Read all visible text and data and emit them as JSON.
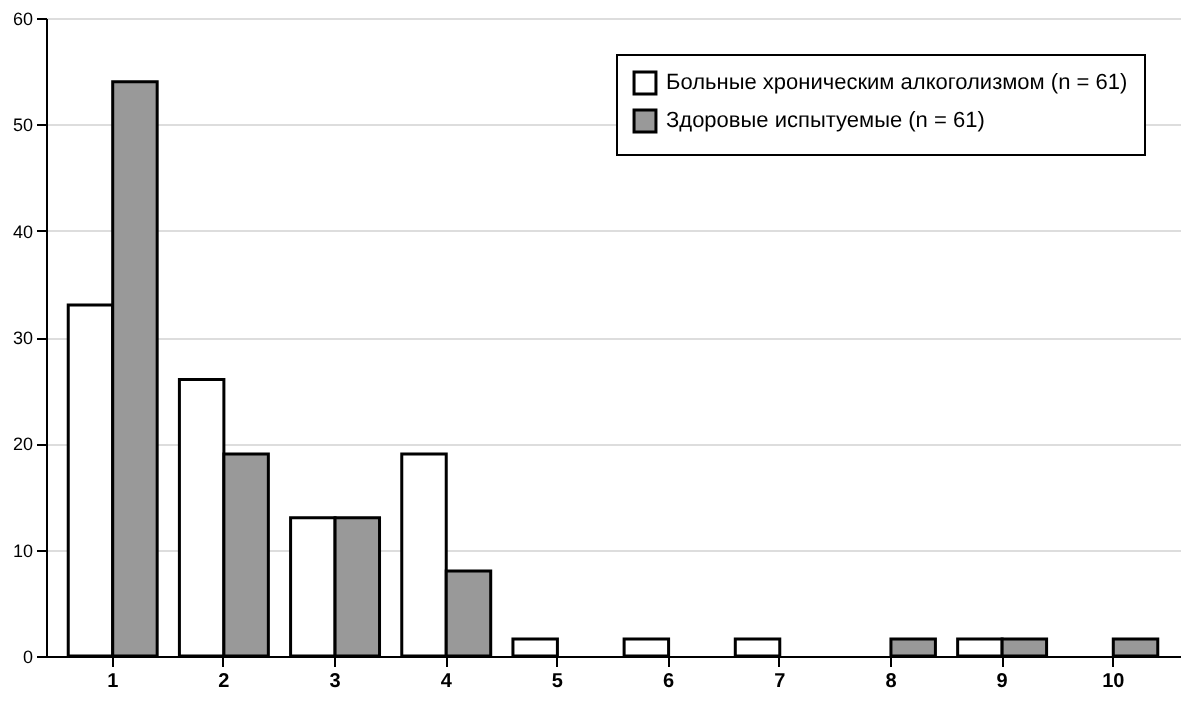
{
  "chart_data": {
    "type": "bar",
    "categories": [
      "1",
      "2",
      "3",
      "4",
      "5",
      "6",
      "7",
      "8",
      "9",
      "10"
    ],
    "series": [
      {
        "name": "Больные хроническим алкоголизмом (n = 61)",
        "color": "#ffffff",
        "values": [
          33,
          26,
          13,
          19,
          1.6,
          1.6,
          1.6,
          0,
          1.6,
          0
        ]
      },
      {
        "name": "Здоровые испытуемые (n = 61)",
        "color": "#999999",
        "values": [
          54,
          19,
          13,
          8,
          0,
          0,
          0,
          1.6,
          1.6,
          1.6
        ]
      }
    ],
    "ylim": [
      0,
      60
    ],
    "yticks": [
      0,
      10,
      20,
      30,
      40,
      50,
      60
    ],
    "grid": "y",
    "legend": "top right"
  }
}
